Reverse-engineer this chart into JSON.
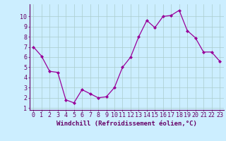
{
  "x": [
    0,
    1,
    2,
    3,
    4,
    5,
    6,
    7,
    8,
    9,
    10,
    11,
    12,
    13,
    14,
    15,
    16,
    17,
    18,
    19,
    20,
    21,
    22,
    23
  ],
  "y": [
    7.0,
    6.1,
    4.6,
    4.5,
    1.8,
    1.5,
    2.8,
    2.4,
    2.0,
    2.1,
    3.0,
    5.0,
    6.0,
    8.0,
    9.6,
    8.9,
    10.0,
    10.1,
    10.6,
    8.6,
    7.9,
    6.5,
    6.5,
    5.6
  ],
  "line_color": "#990099",
  "marker": "D",
  "marker_size": 2.0,
  "line_width": 0.9,
  "bg_color": "#cceeff",
  "grid_color": "#aacccc",
  "xlabel": "Windchill (Refroidissement éolien,°C)",
  "xlabel_color": "#660066",
  "tick_color": "#660066",
  "xlim": [
    -0.5,
    23.5
  ],
  "ylim": [
    0.8,
    11.2
  ],
  "yticks": [
    1,
    2,
    3,
    4,
    5,
    6,
    7,
    8,
    9,
    10
  ],
  "xticks": [
    0,
    1,
    2,
    3,
    4,
    5,
    6,
    7,
    8,
    9,
    10,
    11,
    12,
    13,
    14,
    15,
    16,
    17,
    18,
    19,
    20,
    21,
    22,
    23
  ],
  "spine_color": "#660066",
  "tick_font_size": 6.0,
  "xlabel_font_size": 6.5
}
